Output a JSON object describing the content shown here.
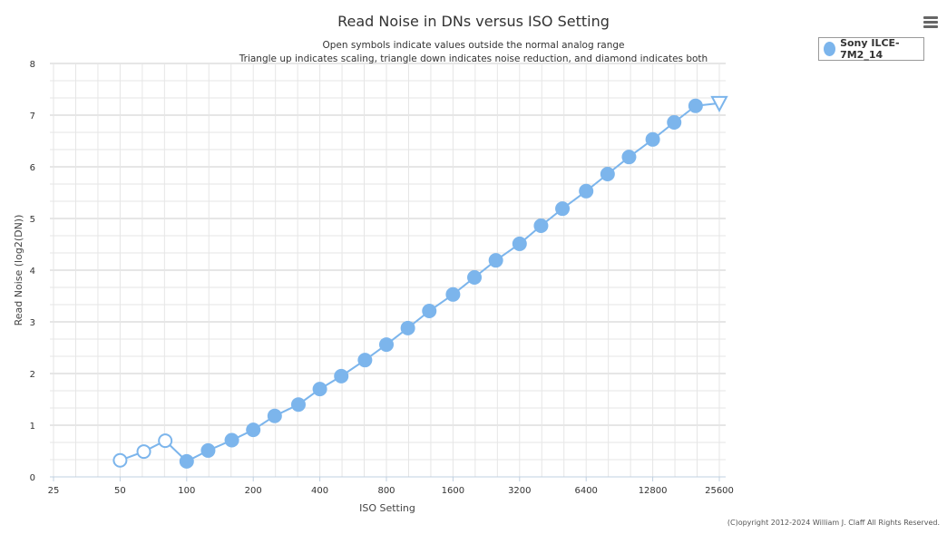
{
  "chart_data": {
    "type": "line",
    "title": "Read Noise in DNs versus ISO Setting",
    "subtitle_lines": [
      "Open symbols indicate values outside the normal analog range",
      "Triangle up indicates scaling, triangle down indicates noise reduction, and diamond indicates both"
    ],
    "xlabel": "ISO Setting",
    "ylabel": "Read Noise (log2(DN))",
    "x_scale": "log2",
    "xlim": [
      25,
      25600
    ],
    "ylim": [
      0,
      8
    ],
    "x_ticks": [
      "25",
      "50",
      "100",
      "200",
      "400",
      "800",
      "1600",
      "3200",
      "6400",
      "12800",
      "25600"
    ],
    "y_ticks": [
      "0",
      "1",
      "2",
      "3",
      "4",
      "5",
      "6",
      "7",
      "8"
    ],
    "grid": true,
    "legend_position": "top-right",
    "series": [
      {
        "name": "Sony ILCE-7M2_14",
        "color": "#7cb5ec",
        "points": [
          {
            "x": 50,
            "y": 0.32,
            "marker": "open-circle"
          },
          {
            "x": 64,
            "y": 0.49,
            "marker": "open-circle"
          },
          {
            "x": 80,
            "y": 0.7,
            "marker": "open-circle"
          },
          {
            "x": 100,
            "y": 0.3,
            "marker": "circle"
          },
          {
            "x": 125,
            "y": 0.51,
            "marker": "circle"
          },
          {
            "x": 160,
            "y": 0.71,
            "marker": "circle"
          },
          {
            "x": 200,
            "y": 0.91,
            "marker": "circle"
          },
          {
            "x": 250,
            "y": 1.18,
            "marker": "circle"
          },
          {
            "x": 320,
            "y": 1.4,
            "marker": "circle"
          },
          {
            "x": 400,
            "y": 1.7,
            "marker": "circle"
          },
          {
            "x": 500,
            "y": 1.95,
            "marker": "circle"
          },
          {
            "x": 640,
            "y": 2.26,
            "marker": "circle"
          },
          {
            "x": 800,
            "y": 2.56,
            "marker": "circle"
          },
          {
            "x": 1000,
            "y": 2.88,
            "marker": "circle"
          },
          {
            "x": 1250,
            "y": 3.21,
            "marker": "circle"
          },
          {
            "x": 1600,
            "y": 3.53,
            "marker": "circle"
          },
          {
            "x": 2000,
            "y": 3.86,
            "marker": "circle"
          },
          {
            "x": 2500,
            "y": 4.19,
            "marker": "circle"
          },
          {
            "x": 3200,
            "y": 4.51,
            "marker": "circle"
          },
          {
            "x": 4000,
            "y": 4.86,
            "marker": "circle"
          },
          {
            "x": 5000,
            "y": 5.19,
            "marker": "circle"
          },
          {
            "x": 6400,
            "y": 5.53,
            "marker": "circle"
          },
          {
            "x": 8000,
            "y": 5.86,
            "marker": "circle"
          },
          {
            "x": 10000,
            "y": 6.19,
            "marker": "circle"
          },
          {
            "x": 12800,
            "y": 6.53,
            "marker": "circle"
          },
          {
            "x": 16000,
            "y": 6.86,
            "marker": "circle"
          },
          {
            "x": 20000,
            "y": 7.18,
            "marker": "circle"
          },
          {
            "x": 25600,
            "y": 7.23,
            "marker": "open-triangle-down"
          }
        ]
      }
    ]
  },
  "copyright": "(C)opyright 2012-2024 William J. Claff All Rights Reserved.",
  "menu_icon": "hamburger-menu-icon"
}
